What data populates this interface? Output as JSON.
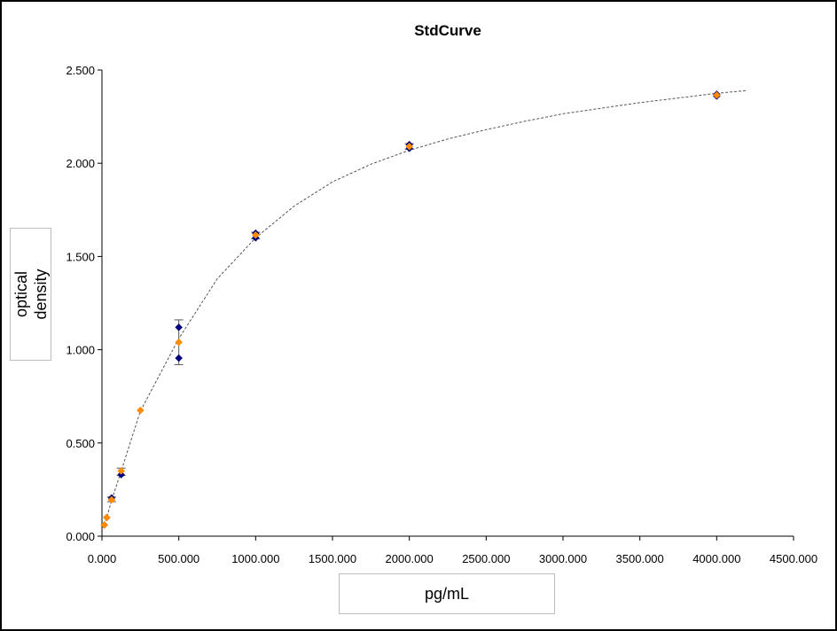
{
  "chart_data": {
    "type": "scatter",
    "title": "StdCurve",
    "xlabel": "pg/mL",
    "ylabel": "optical\ndensity",
    "xlim": [
      0,
      4500
    ],
    "ylim": [
      0,
      2.5
    ],
    "x_ticks": [
      "0.000",
      "500.000",
      "1000.000",
      "1500.000",
      "2000.000",
      "2500.000",
      "3000.000",
      "3500.000",
      "4000.000",
      "4500.000"
    ],
    "y_ticks": [
      "0.000",
      "0.500",
      "1.000",
      "1.500",
      "2.000",
      "2.500"
    ],
    "grid": false,
    "series": [
      {
        "color": "#00007f",
        "marker": "diamond",
        "x": [
          15.6,
          31.25,
          62.5,
          125,
          500,
          500,
          1000,
          1000,
          2000,
          2000,
          4000,
          4000
        ],
        "y": [
          0.06,
          0.1,
          0.205,
          0.33,
          1.12,
          0.955,
          1.6,
          1.625,
          2.08,
          2.1,
          2.36,
          2.37
        ]
      },
      {
        "color": "#ff8c00",
        "marker": "diamond",
        "x": [
          15.6,
          31.25,
          62.5,
          125,
          250,
          500,
          1000,
          2000,
          4000
        ],
        "y": [
          0.06,
          0.1,
          0.195,
          0.35,
          0.675,
          1.04,
          1.615,
          2.09,
          2.365
        ]
      }
    ],
    "error_bars": [
      {
        "x": 500,
        "y_low": 0.92,
        "y_high": 1.16
      },
      {
        "x": 1000,
        "y_low": 1.595,
        "y_high": 1.63
      },
      {
        "x": 2000,
        "y_low": 2.075,
        "y_high": 2.105
      },
      {
        "x": 125,
        "y_low": 0.325,
        "y_high": 0.365
      },
      {
        "x": 62.5,
        "y_low": 0.185,
        "y_high": 0.21
      }
    ],
    "fit_curve": {
      "style": "dashed",
      "color": "#555555",
      "x": [
        0,
        31.25,
        62.5,
        125,
        250,
        500,
        750,
        1000,
        1250,
        1500,
        1750,
        2000,
        2250,
        2500,
        2750,
        3000,
        3250,
        3500,
        3750,
        4000,
        4200
      ],
      "y": [
        0.04,
        0.1,
        0.19,
        0.35,
        0.67,
        1.06,
        1.38,
        1.6,
        1.77,
        1.9,
        1.995,
        2.07,
        2.13,
        2.18,
        2.225,
        2.265,
        2.295,
        2.325,
        2.35,
        2.375,
        2.39
      ]
    }
  }
}
